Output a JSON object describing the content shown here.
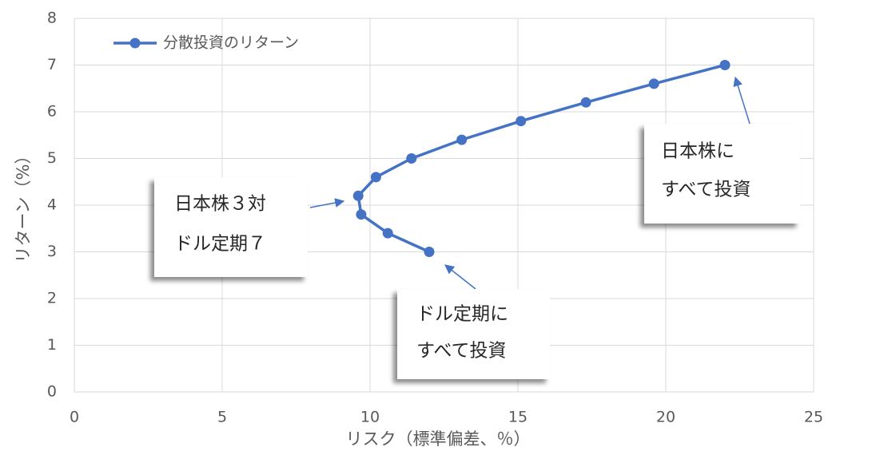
{
  "chart_data": {
    "type": "line",
    "series": [
      {
        "name": "分散投資のリターン",
        "color": "#4472c4",
        "x": [
          22.0,
          19.6,
          17.3,
          15.1,
          13.1,
          11.4,
          10.2,
          9.6,
          9.7,
          10.6,
          12.0
        ],
        "values": [
          7.0,
          6.6,
          6.2,
          5.8,
          5.4,
          5.0,
          4.6,
          4.2,
          3.8,
          3.4,
          3.0
        ]
      }
    ],
    "xlim": [
      0,
      25
    ],
    "xticks": [
      0,
      5,
      10,
      15,
      20,
      25
    ],
    "ylim": [
      0,
      8
    ],
    "yticks": [
      0,
      1,
      2,
      3,
      4,
      5,
      6,
      7,
      8
    ],
    "x_label": "リスク（標準偏差、％）",
    "y_label": "リターン（%）",
    "grid": true,
    "legend": "upper left",
    "annotations": [
      {
        "lines": [
          "日本株３対",
          "ドル定期７"
        ]
      },
      {
        "lines": [
          "ドル定期に",
          "すべて投資"
        ]
      },
      {
        "lines": [
          "日本株に",
          "すべて投資"
        ]
      }
    ]
  }
}
